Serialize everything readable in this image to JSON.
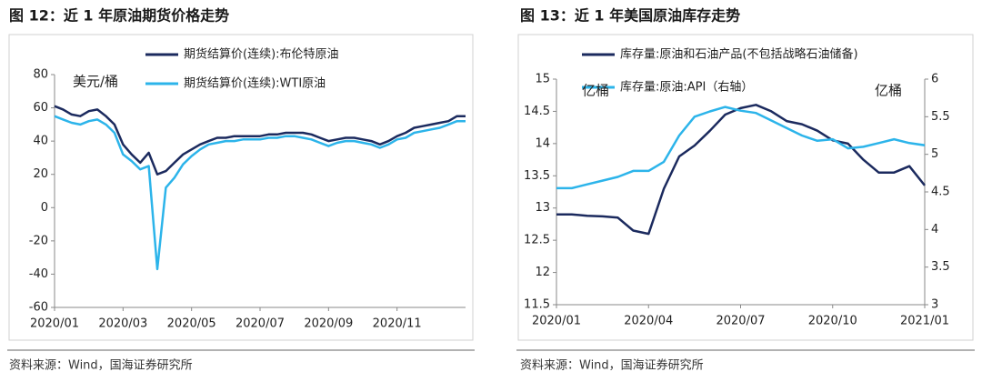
{
  "chart_data": [
    {
      "type": "line",
      "title": "图 12：近 1 年原油期货价格走势",
      "ylabel": "美元/桶",
      "source": "资料来源：Wind，国海证券研究所",
      "x": [
        0,
        0.25,
        0.5,
        0.75,
        1,
        1.25,
        1.5,
        1.75,
        2,
        2.25,
        2.5,
        2.75,
        3,
        3.25,
        3.5,
        3.75,
        4,
        4.25,
        4.5,
        4.75,
        5,
        5.25,
        5.5,
        5.75,
        6,
        6.25,
        6.5,
        6.75,
        7,
        7.25,
        7.5,
        7.75,
        8,
        8.25,
        8.5,
        8.75,
        9,
        9.25,
        9.5,
        9.75,
        10,
        10.25,
        10.5,
        10.75,
        11,
        11.25,
        11.5,
        11.75,
        12
      ],
      "xlim": [
        0,
        12
      ],
      "xticks": [
        {
          "value": 0,
          "label": "2020/01"
        },
        {
          "value": 2,
          "label": "2020/03"
        },
        {
          "value": 4,
          "label": "2020/05"
        },
        {
          "value": 6,
          "label": "2020/07"
        },
        {
          "value": 8,
          "label": "2020/09"
        },
        {
          "value": 10,
          "label": "2020/11"
        }
      ],
      "ylim": [
        -60,
        80
      ],
      "yticks": [
        -60,
        -40,
        -20,
        0,
        20,
        40,
        60,
        80
      ],
      "series": [
        {
          "name": "期货结算价(连续):布伦特原油",
          "color": "#1b2a5e",
          "values": [
            61,
            59,
            56,
            55,
            58,
            59,
            55,
            50,
            38,
            32,
            27,
            33,
            20,
            22,
            27,
            32,
            35,
            38,
            40,
            42,
            42,
            43,
            43,
            43,
            43,
            44,
            44,
            45,
            45,
            45,
            44,
            42,
            40,
            41,
            42,
            42,
            41,
            40,
            38,
            40,
            43,
            45,
            48,
            49,
            50,
            51,
            52,
            55,
            55
          ]
        },
        {
          "name": "期货结算价(连续):WTI原油",
          "color": "#2cb4ea",
          "values": [
            55,
            53,
            51,
            50,
            52,
            53,
            50,
            45,
            32,
            28,
            23,
            25,
            -37,
            12,
            18,
            26,
            31,
            35,
            38,
            39,
            40,
            40,
            41,
            41,
            41,
            42,
            42,
            43,
            43,
            42,
            41,
            39,
            37,
            39,
            40,
            40,
            39,
            38,
            36,
            38,
            41,
            42,
            45,
            46,
            47,
            48,
            50,
            52,
            52
          ]
        }
      ]
    },
    {
      "type": "line",
      "title": "图 13：近 1 年美国原油库存走势",
      "ylabel": "亿桶",
      "y2label": "亿桶",
      "source": "资料来源：Wind，国海证券研究所",
      "x": [
        0,
        0.5,
        1,
        1.5,
        2,
        2.5,
        3,
        3.5,
        4,
        4.5,
        5,
        5.5,
        6,
        6.5,
        7,
        7.5,
        8,
        8.5,
        9,
        9.5,
        10,
        10.5,
        11,
        11.5,
        12
      ],
      "xlim": [
        0,
        12
      ],
      "xticks": [
        {
          "value": 0,
          "label": "2020/01"
        },
        {
          "value": 3,
          "label": "2020/04"
        },
        {
          "value": 6,
          "label": "2020/07"
        },
        {
          "value": 9,
          "label": "2020/10"
        },
        {
          "value": 12,
          "label": "2021/01"
        }
      ],
      "ylim": [
        11.5,
        15
      ],
      "yticks": [
        11.5,
        12,
        12.5,
        13,
        13.5,
        14,
        14.5,
        15
      ],
      "y2lim": [
        3,
        6
      ],
      "y2ticks": [
        3,
        3.5,
        4,
        4.5,
        5,
        5.5,
        6
      ],
      "series": [
        {
          "name": "库存量:原油和石油产品(不包括战略石油储备)",
          "color": "#1b2a5e",
          "values": [
            12.9,
            12.9,
            12.88,
            12.87,
            12.85,
            12.65,
            12.6,
            13.3,
            13.8,
            13.97,
            14.2,
            14.45,
            14.55,
            14.6,
            14.5,
            14.35,
            14.3,
            14.2,
            14.05,
            14.0,
            13.75,
            13.55,
            13.55,
            13.65,
            13.35
          ]
        },
        {
          "name": "库存量:原油:API（右轴）",
          "color": "#2cb4ea",
          "axis": "y2",
          "values": [
            4.55,
            4.55,
            4.6,
            4.65,
            4.7,
            4.78,
            4.78,
            4.9,
            5.25,
            5.5,
            5.57,
            5.63,
            5.58,
            5.55,
            5.45,
            5.35,
            5.25,
            5.18,
            5.2,
            5.08,
            5.1,
            5.15,
            5.2,
            5.15,
            5.12
          ]
        }
      ]
    }
  ]
}
